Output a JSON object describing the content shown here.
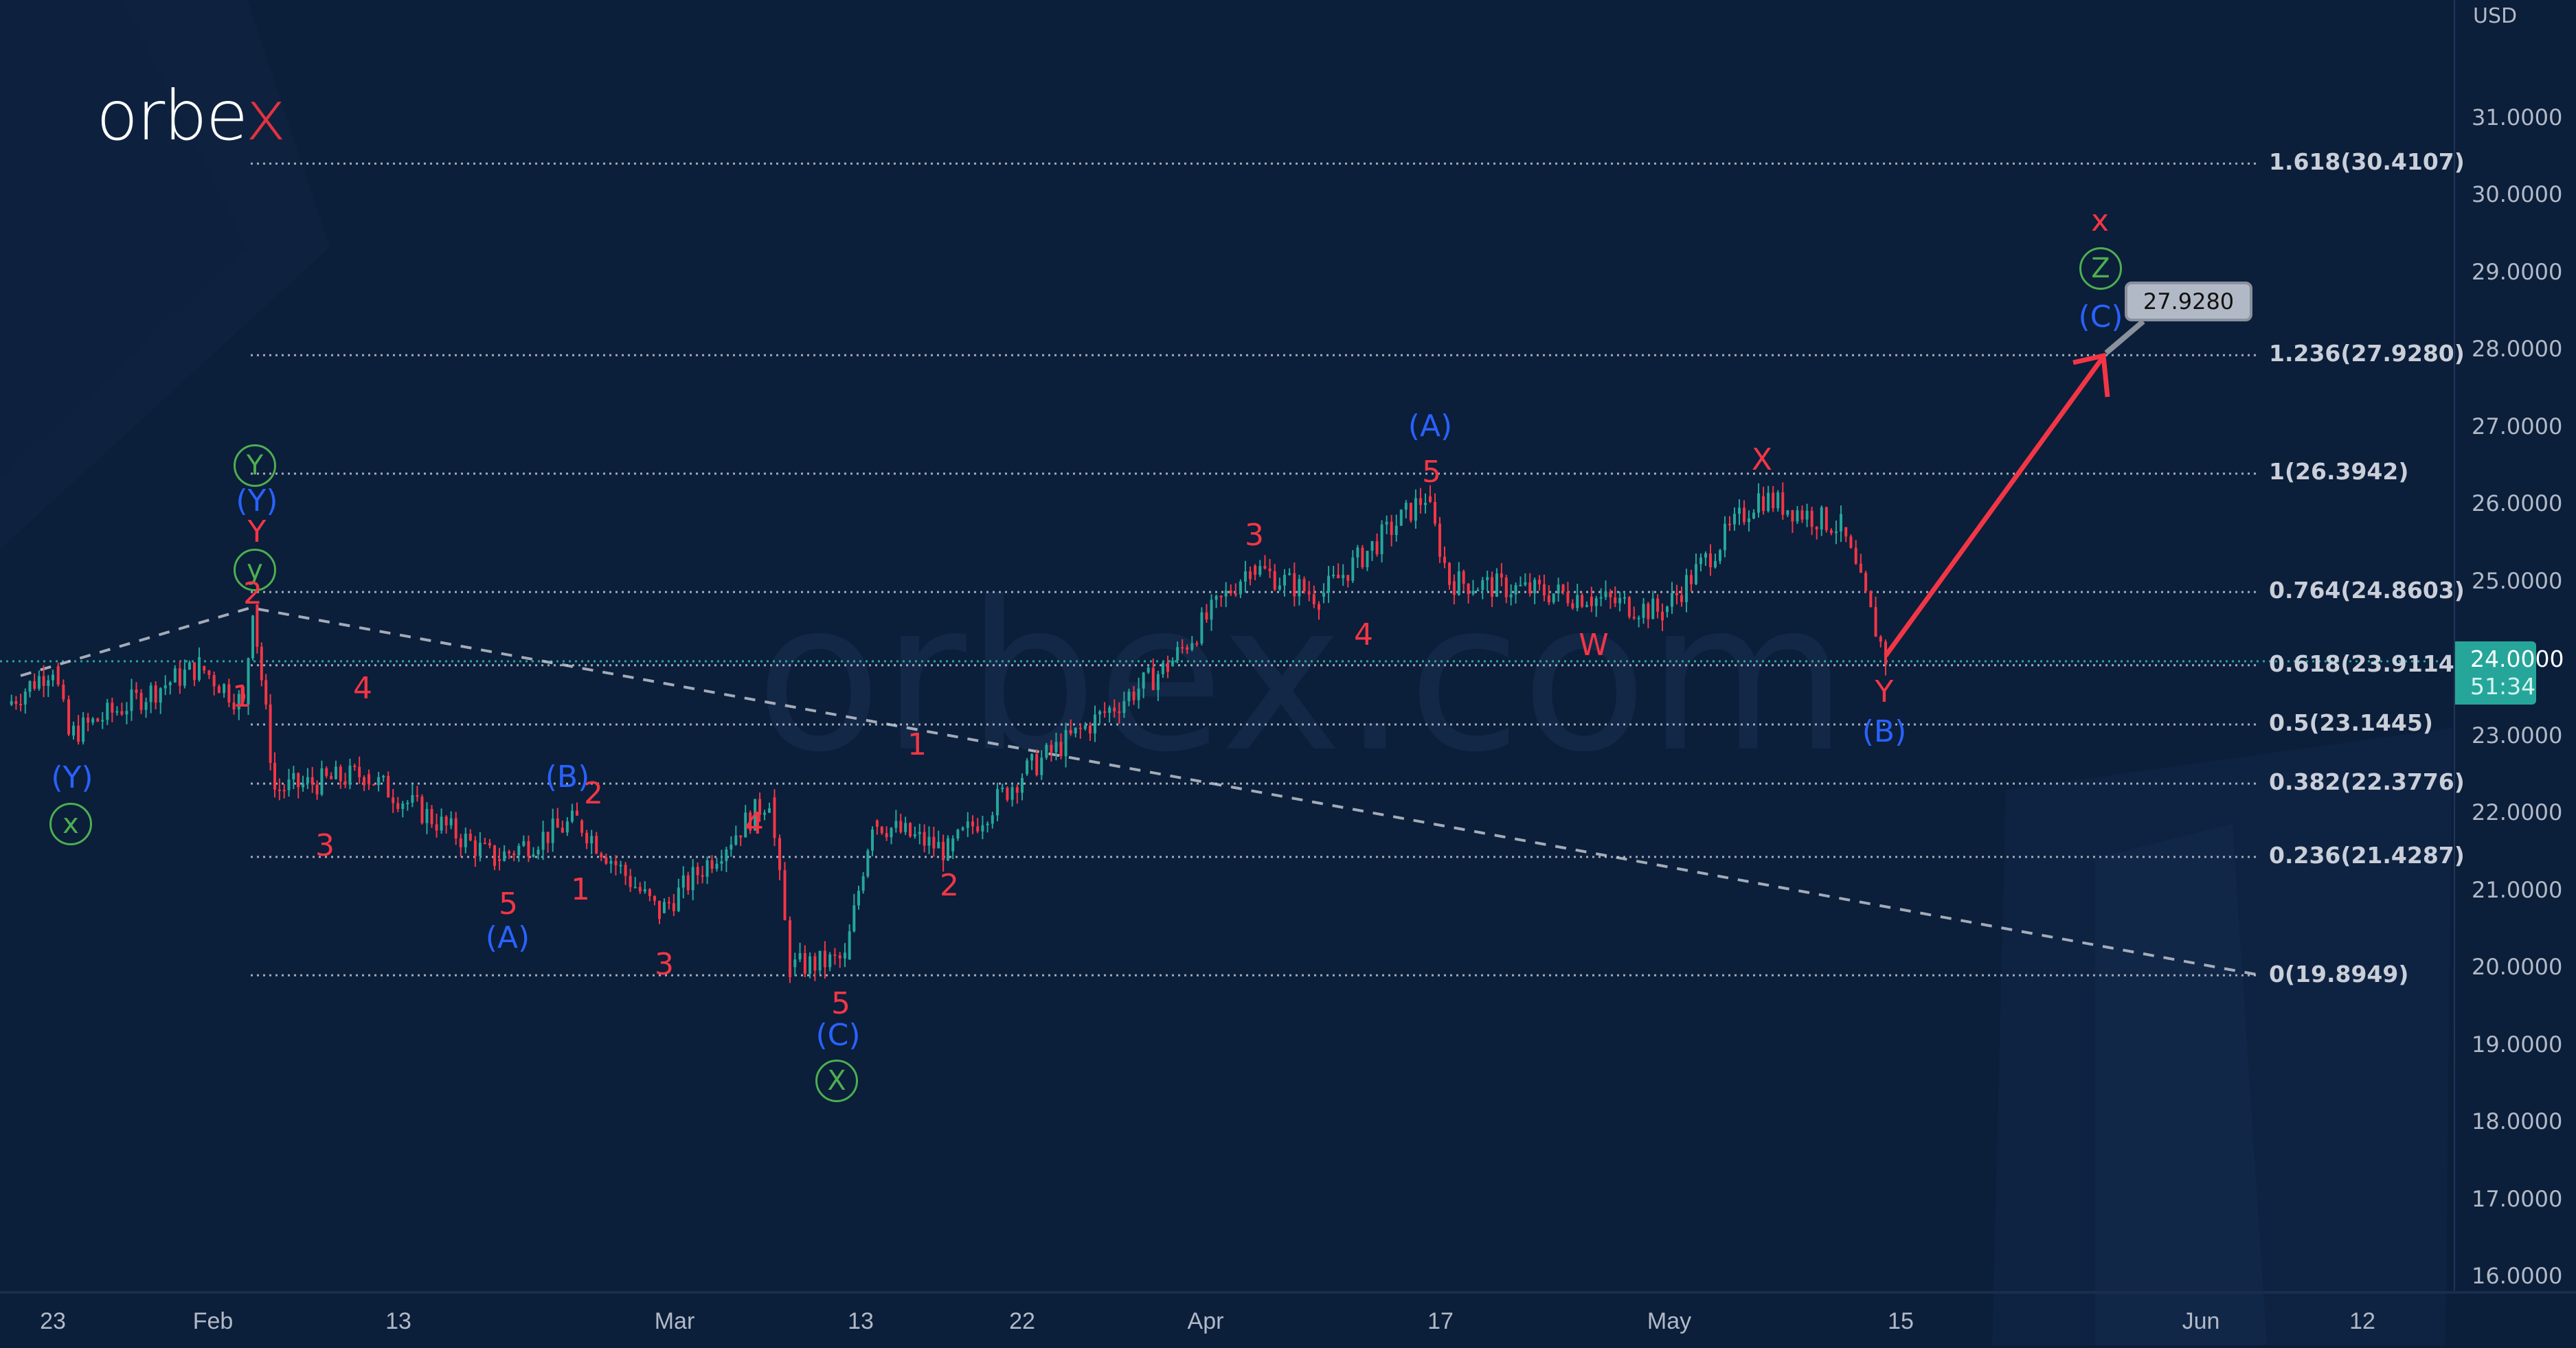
{
  "brand": {
    "logo_text_main": "orbe",
    "logo_text_accent": "x",
    "watermark": "orbex.com"
  },
  "price_axis": {
    "currency": "USD",
    "ticks": [
      "31.0000",
      "30.0000",
      "29.0000",
      "28.0000",
      "27.0000",
      "26.0000",
      "25.0000",
      "23.0000",
      "22.0000",
      "21.0000",
      "20.0000",
      "19.0000",
      "18.0000",
      "17.0000",
      "16.0000"
    ],
    "current_price": "24.0000",
    "countdown": "51:34"
  },
  "time_axis": {
    "ticks": [
      "23",
      "Feb",
      "13",
      "Mar",
      "13",
      "22",
      "Apr",
      "17",
      "May",
      "15",
      "Jun",
      "12"
    ]
  },
  "fib_levels": [
    {
      "label": "1.618(30.4107)"
    },
    {
      "label": "1.236(27.9280)"
    },
    {
      "label": "1(26.3942)"
    },
    {
      "label": "0.764(24.8603)"
    },
    {
      "label": "0.618(23.9114)"
    },
    {
      "label": "0.5(23.1445)"
    },
    {
      "label": "0.382(22.3776)"
    },
    {
      "label": "0.236(21.4287)"
    },
    {
      "label": "0(19.8949)"
    }
  ],
  "target_callout": "27.9280",
  "waves": {
    "l_Y_blue": "(Y)",
    "l_x_green": "x",
    "p_Y_green": "Y",
    "p_Y_blue": "(Y)",
    "p_Y_red": "Y",
    "p_y_green": "y",
    "p_2": "2",
    "p_1": "1",
    "d_4": "4",
    "d_3": "3",
    "d_5": "5",
    "d_A": "(A)",
    "d_B": "(B)",
    "d_B2": "2",
    "d_1": "1",
    "d_3b": "3",
    "d_4b": "4",
    "d_5b": "5",
    "d_C": "(C)",
    "d_X": "X",
    "u_1": "1",
    "u_2": "2",
    "u_3": "3",
    "u_4": "4",
    "u_5": "5",
    "u_A": "(A)",
    "w_W": "W",
    "w_X": "X",
    "w_Y": "Y",
    "w_B": "(B)",
    "f_x": "x",
    "f_Z": "Z",
    "f_C": "(C)"
  },
  "colors": {
    "background": "#0b1e3a",
    "bull": "#26a69a",
    "bear": "#f23645",
    "wave_red": "#f23645",
    "wave_blue": "#2962ff",
    "wave_green": "#4caf50",
    "projection_arrow": "#f23645"
  },
  "chart_data": {
    "type": "candlestick",
    "title": "",
    "ylabel": "USD",
    "ylim": [
      15.6,
      32.0
    ],
    "x_ticks": [
      "23",
      "Feb",
      "13",
      "Mar",
      "13",
      "22",
      "Apr",
      "17",
      "May",
      "15",
      "Jun",
      "12"
    ],
    "current_price": 24.0,
    "fibonacci": {
      "levels": [
        1.618,
        1.236,
        1,
        0.764,
        0.618,
        0.5,
        0.382,
        0.236,
        0
      ],
      "prices": [
        30.4107,
        27.928,
        26.3942,
        24.8603,
        23.9114,
        23.1445,
        22.3776,
        21.4287,
        19.8949
      ]
    },
    "approx_path": [
      {
        "t": "Jan 20",
        "p": 23.4
      },
      {
        "t": "Jan 23",
        "p": 23.9
      },
      {
        "t": "Jan 26",
        "p": 23.0
      },
      {
        "t": "Feb 1",
        "p": 23.9
      },
      {
        "t": "Feb 3",
        "p": 23.4
      },
      {
        "t": "Feb 4",
        "p": 24.7
      },
      {
        "t": "Feb 6",
        "p": 22.3
      },
      {
        "t": "Feb 10",
        "p": 22.5
      },
      {
        "t": "Feb 18",
        "p": 21.4
      },
      {
        "t": "Feb 22",
        "p": 21.9
      },
      {
        "t": "Feb 27",
        "p": 20.7
      },
      {
        "t": "Mar 6",
        "p": 22.2
      },
      {
        "t": "Mar 9",
        "p": 20.0
      },
      {
        "t": "Mar 13",
        "p": 20.1
      },
      {
        "t": "Mar 15",
        "p": 21.9
      },
      {
        "t": "Mar 18",
        "p": 21.5
      },
      {
        "t": "Mar 22",
        "p": 22.5
      },
      {
        "t": "Mar 30",
        "p": 23.9
      },
      {
        "t": "Apr 3",
        "p": 25.2
      },
      {
        "t": "Apr 8",
        "p": 24.8
      },
      {
        "t": "Apr 15",
        "p": 26.1
      },
      {
        "t": "Apr 18",
        "p": 25.0
      },
      {
        "t": "Apr 27",
        "p": 24.8
      },
      {
        "t": "May 2",
        "p": 24.6
      },
      {
        "t": "May 8",
        "p": 26.1
      },
      {
        "t": "May 12",
        "p": 25.7
      },
      {
        "t": "May 15",
        "p": 24.0
      }
    ],
    "projection": {
      "from": {
        "t": "May 15",
        "p": 24.0
      },
      "to": {
        "t": "Jun 2",
        "p": 27.928
      }
    },
    "annotations": [
      "(Y)",
      "x",
      "Y",
      "(Y)",
      "Y",
      "y",
      "2",
      "1",
      "4",
      "3",
      "5",
      "(A)",
      "(B)",
      "2",
      "1",
      "3",
      "4",
      "5",
      "(C)",
      "X",
      "1",
      "2",
      "3",
      "4",
      "5",
      "(A)",
      "W",
      "X",
      "Y",
      "(B)",
      "x",
      "Z",
      "(C)"
    ]
  }
}
